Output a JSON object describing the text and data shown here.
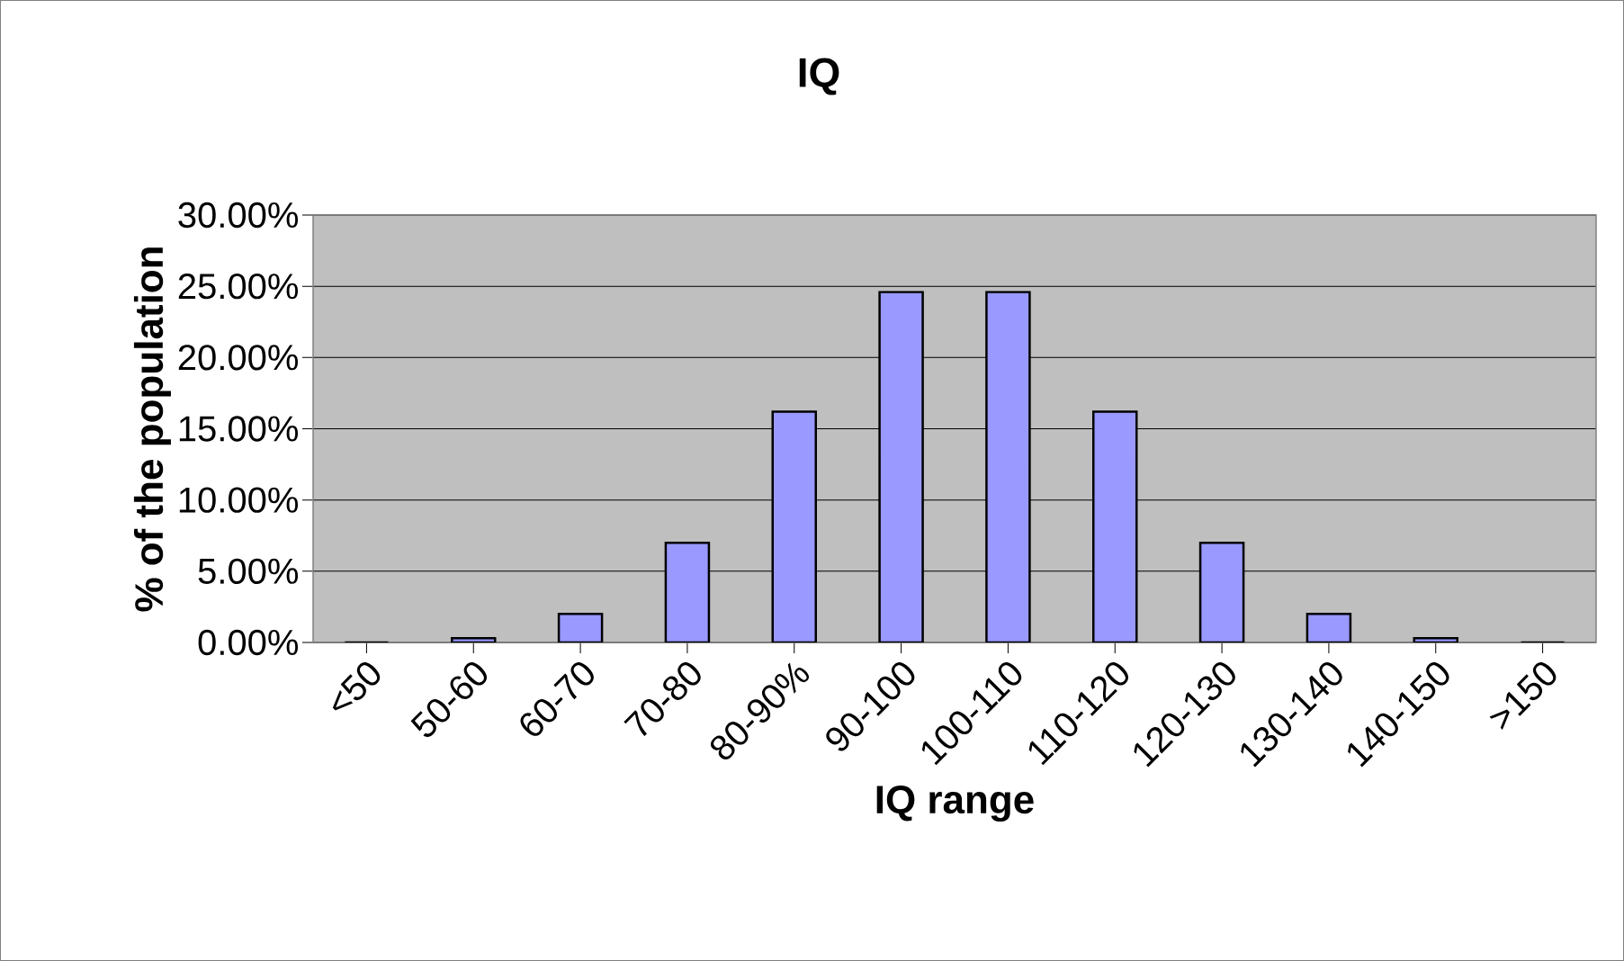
{
  "chart_data": {
    "type": "bar",
    "title": "IQ",
    "xlabel": "IQ range",
    "ylabel": "% of the population",
    "categories": [
      "<50",
      "50-60",
      "60-70",
      "70-80",
      "80-90%",
      "90-100",
      "100-110",
      "110-120",
      "120-130",
      "130-140",
      "140-150",
      ">150"
    ],
    "values": [
      0,
      0.3,
      2,
      7,
      16.2,
      24.6,
      24.6,
      16.2,
      7,
      2,
      0.3,
      0
    ],
    "color": "#9999ff",
    "ylim": [
      0,
      30
    ],
    "yticks": [
      {
        "value": 0,
        "label": "0.00%"
      },
      {
        "value": 5,
        "label": "5.00%"
      },
      {
        "value": 10,
        "label": "10.00%"
      },
      {
        "value": 15,
        "label": "15.00%"
      },
      {
        "value": 20,
        "label": "20.00%"
      },
      {
        "value": 25,
        "label": "25.00%"
      },
      {
        "value": 30,
        "label": "30.00%"
      }
    ],
    "grid": "y"
  }
}
